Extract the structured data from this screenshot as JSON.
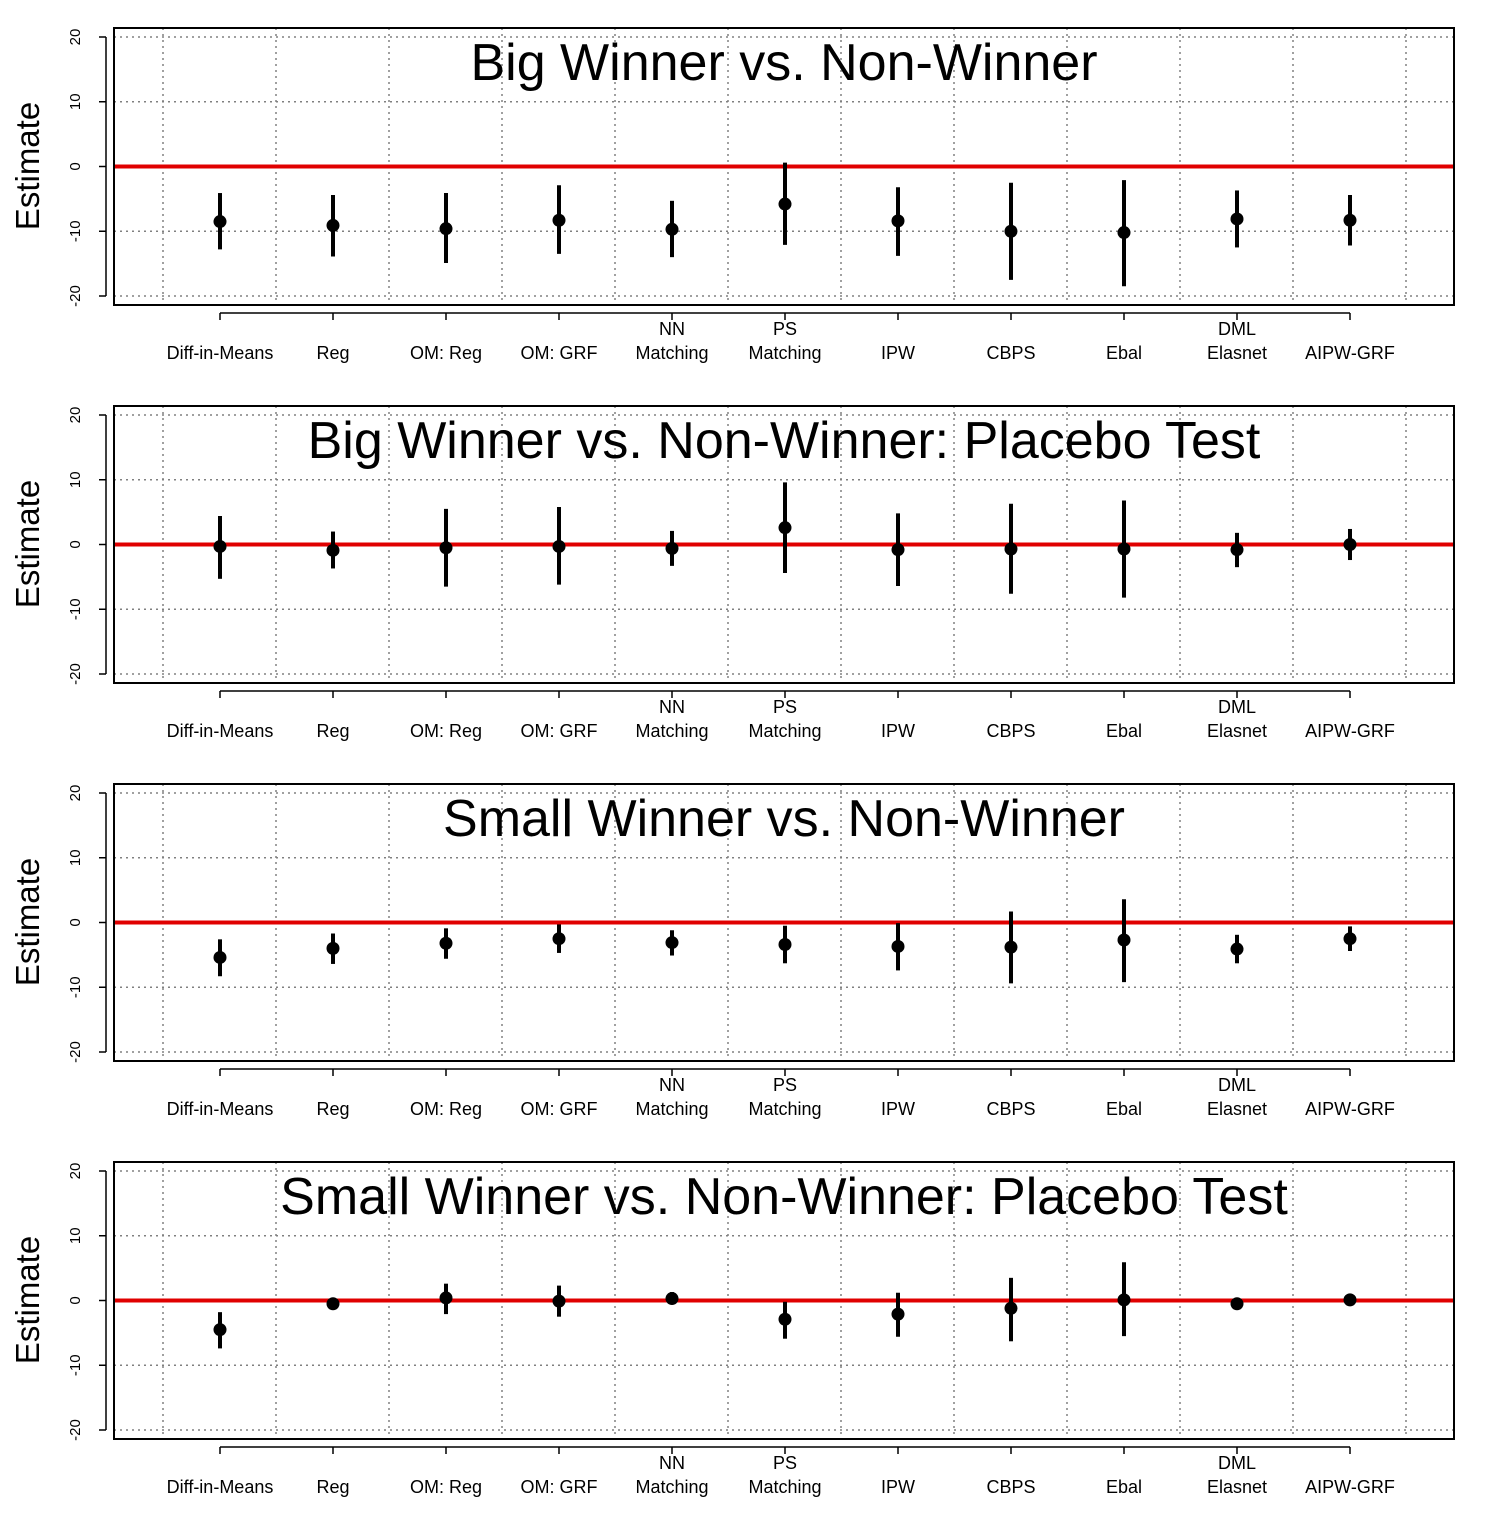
{
  "colors": {
    "zero_line": "#e00000",
    "marks": "#000000",
    "grid": "#808080",
    "frame": "#000000"
  },
  "chart_data": [
    {
      "type": "scatter",
      "title": "Big Winner vs. Non-Winner",
      "ylabel": "Estimate",
      "ylim": [
        -20,
        20
      ],
      "yticks": [
        -20,
        -10,
        0,
        10,
        20
      ],
      "grid": true,
      "reference_line": 0,
      "categories": [
        [
          "Diff-in-Means"
        ],
        [
          "Reg"
        ],
        [
          "OM: Reg"
        ],
        [
          "OM: GRF"
        ],
        [
          "NN",
          "Matching"
        ],
        [
          "PS",
          "Matching"
        ],
        [
          "IPW"
        ],
        [
          "CBPS"
        ],
        [
          "Ebal"
        ],
        [
          "DML",
          "Elasnet"
        ],
        [
          "AIPW-GRF"
        ]
      ],
      "estimates": [
        -8.5,
        -9.1,
        -9.6,
        -8.3,
        -9.7,
        -5.8,
        -8.4,
        -10.0,
        -10.2,
        -8.1,
        -8.3
      ],
      "lower": [
        -12.8,
        -13.9,
        -14.9,
        -13.5,
        -14.0,
        -12.1,
        -13.8,
        -17.5,
        -18.5,
        -12.5,
        -12.2
      ],
      "upper": [
        -4.1,
        -4.4,
        -4.1,
        -2.9,
        -5.3,
        0.6,
        -3.2,
        -2.5,
        -2.1,
        -3.7,
        -4.4
      ]
    },
    {
      "type": "scatter",
      "title": "Big Winner vs. Non-Winner: Placebo Test",
      "ylabel": "Estimate",
      "ylim": [
        -20,
        20
      ],
      "yticks": [
        -20,
        -10,
        0,
        10,
        20
      ],
      "grid": true,
      "reference_line": 0,
      "categories": [
        [
          "Diff-in-Means"
        ],
        [
          "Reg"
        ],
        [
          "OM: Reg"
        ],
        [
          "OM: GRF"
        ],
        [
          "NN",
          "Matching"
        ],
        [
          "PS",
          "Matching"
        ],
        [
          "IPW"
        ],
        [
          "CBPS"
        ],
        [
          "Ebal"
        ],
        [
          "DML",
          "Elasnet"
        ],
        [
          "AIPW-GRF"
        ]
      ],
      "estimates": [
        -0.3,
        -0.9,
        -0.5,
        -0.3,
        -0.6,
        2.6,
        -0.8,
        -0.7,
        -0.7,
        -0.8,
        0.0
      ],
      "lower": [
        -5.3,
        -3.7,
        -6.5,
        -6.2,
        -3.3,
        -4.4,
        -6.4,
        -7.6,
        -8.2,
        -3.5,
        -2.4
      ],
      "upper": [
        4.4,
        2.0,
        5.5,
        5.8,
        2.1,
        9.6,
        4.8,
        6.3,
        6.8,
        1.8,
        2.4
      ]
    },
    {
      "type": "scatter",
      "title": "Small Winner vs. Non-Winner",
      "ylabel": "Estimate",
      "ylim": [
        -20,
        20
      ],
      "yticks": [
        -20,
        -10,
        0,
        10,
        20
      ],
      "grid": true,
      "reference_line": 0,
      "categories": [
        [
          "Diff-in-Means"
        ],
        [
          "Reg"
        ],
        [
          "OM: Reg"
        ],
        [
          "OM: GRF"
        ],
        [
          "NN",
          "Matching"
        ],
        [
          "PS",
          "Matching"
        ],
        [
          "IPW"
        ],
        [
          "CBPS"
        ],
        [
          "Ebal"
        ],
        [
          "DML",
          "Elasnet"
        ],
        [
          "AIPW-GRF"
        ]
      ],
      "estimates": [
        -5.4,
        -4.0,
        -3.2,
        -2.5,
        -3.1,
        -3.4,
        -3.7,
        -3.8,
        -2.7,
        -4.1,
        -2.5
      ],
      "lower": [
        -8.3,
        -6.4,
        -5.6,
        -4.7,
        -5.1,
        -6.3,
        -7.4,
        -9.4,
        -9.2,
        -6.3,
        -4.4
      ],
      "upper": [
        -2.6,
        -1.7,
        -0.9,
        -0.3,
        -1.2,
        -0.5,
        -0.1,
        1.7,
        3.6,
        -1.9,
        -0.6
      ]
    },
    {
      "type": "scatter",
      "title": "Small Winner vs. Non-Winner: Placebo Test",
      "ylabel": "Estimate",
      "ylim": [
        -20,
        20
      ],
      "yticks": [
        -20,
        -10,
        0,
        10,
        20
      ],
      "grid": true,
      "reference_line": 0,
      "categories": [
        [
          "Diff-in-Means"
        ],
        [
          "Reg"
        ],
        [
          "OM: Reg"
        ],
        [
          "OM: GRF"
        ],
        [
          "NN",
          "Matching"
        ],
        [
          "PS",
          "Matching"
        ],
        [
          "IPW"
        ],
        [
          "CBPS"
        ],
        [
          "Ebal"
        ],
        [
          "DML",
          "Elasnet"
        ],
        [
          "AIPW-GRF"
        ]
      ],
      "estimates": [
        -4.5,
        -0.5,
        0.4,
        -0.1,
        0.3,
        -2.9,
        -2.1,
        -1.2,
        0.1,
        -0.5,
        0.1
      ],
      "lower": [
        -7.4,
        -1.3,
        -2.1,
        -2.5,
        -0.6,
        -5.9,
        -5.6,
        -6.3,
        -5.5,
        -1.4,
        -0.7
      ],
      "upper": [
        -1.8,
        0.3,
        2.6,
        2.3,
        1.3,
        -0.2,
        1.2,
        3.5,
        5.9,
        0.4,
        0.9
      ]
    }
  ]
}
